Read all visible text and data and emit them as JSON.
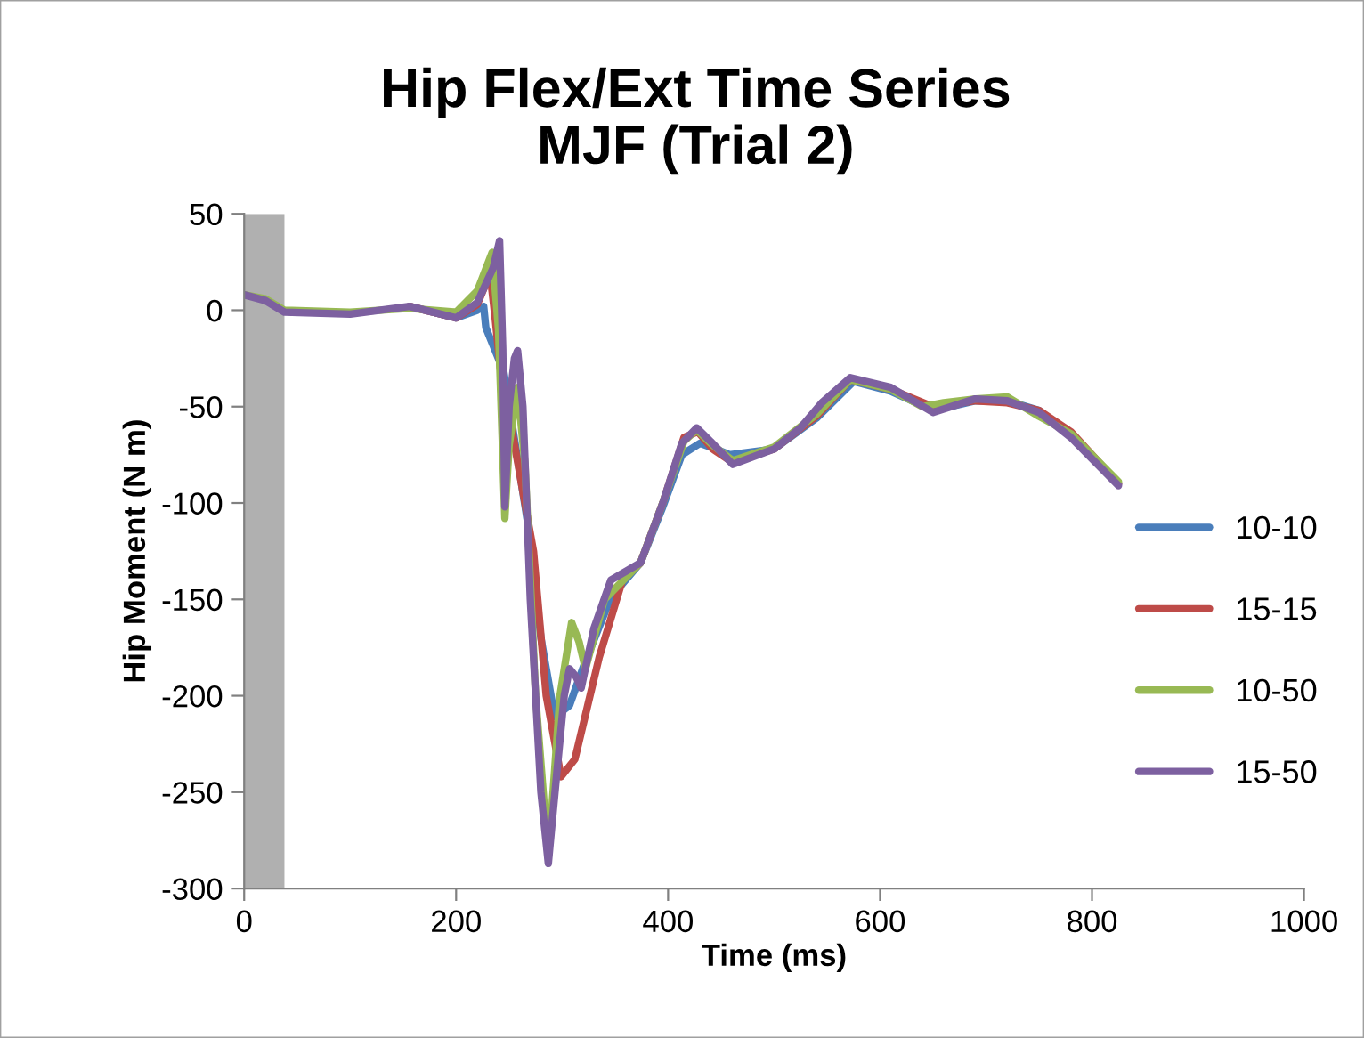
{
  "chart_data": {
    "type": "line",
    "title": "Hip Flex/Ext Time Series\nMJF (Trial 2)",
    "xlabel": "Time (ms)",
    "ylabel": "Hip Moment (N m)",
    "xlim": [
      0,
      1000
    ],
    "xticks": [
      0,
      200,
      400,
      600,
      800,
      1000
    ],
    "ylim": [
      -300,
      50
    ],
    "yticks": [
      -300,
      -250,
      -200,
      -150,
      -100,
      -50,
      0,
      50
    ],
    "grid": false,
    "legend": "right",
    "marker": "none",
    "line_style": "solid",
    "bands": [
      {
        "axis": "x",
        "from": 0,
        "to": 38,
        "color": "#b0b0b0"
      }
    ],
    "series": [
      {
        "name": "10-10",
        "color": "#4a7ebb",
        "x": [
          156,
          200,
          220,
          226,
          228,
          245,
          268,
          280,
          293,
          307,
          320,
          346,
          374,
          395,
          413,
          430,
          445,
          458,
          500,
          540,
          575,
          610,
          650,
          690,
          720,
          750,
          780,
          825
        ],
        "values": [
          2,
          -4,
          0,
          2,
          -9,
          -32,
          -112,
          -170,
          -211,
          -205,
          -185,
          -149,
          -131,
          -102,
          -75,
          -69,
          -72,
          -75,
          -72,
          -56,
          -37,
          -42,
          -52,
          -47,
          -47,
          -52,
          -65,
          -90
        ]
      },
      {
        "name": "15-15",
        "color": "#be4b48",
        "x": [
          156,
          200,
          220,
          232,
          237,
          242,
          251,
          273,
          285,
          299,
          312,
          335,
          357,
          374,
          395,
          415,
          428,
          442,
          461,
          500,
          540,
          572,
          610,
          650,
          690,
          720,
          750,
          780,
          825
        ],
        "values": [
          2,
          -4,
          3,
          19,
          -5,
          -32,
          -57,
          -125,
          -200,
          -242,
          -233,
          -180,
          -140,
          -131,
          -100,
          -66,
          -63,
          -72,
          -79,
          -72,
          -55,
          -36,
          -41,
          -50,
          -47,
          -48,
          -52,
          -63,
          -90
        ]
      },
      {
        "name": "10-50",
        "color": "#98b954",
        "x": [
          0,
          20,
          38,
          100,
          156,
          200,
          220,
          234,
          240,
          246,
          250,
          258,
          265,
          275,
          287,
          298,
          309,
          316,
          322,
          340,
          374,
          395,
          415,
          427,
          442,
          461,
          500,
          540,
          572,
          610,
          640,
          660,
          690,
          720,
          750,
          780,
          825
        ],
        "values": [
          8,
          6,
          0,
          -1,
          1,
          -1,
          10,
          30,
          -10,
          -108,
          -70,
          -40,
          -80,
          -200,
          -284,
          -200,
          -162,
          -172,
          -186,
          -150,
          -131,
          -100,
          -68,
          -62,
          -70,
          -78,
          -71,
          -54,
          -36,
          -41,
          -50,
          -48,
          -46,
          -45,
          -55,
          -64,
          -89
        ]
      },
      {
        "name": "15-50",
        "color": "#7d60a0",
        "x": [
          0,
          20,
          38,
          100,
          156,
          200,
          220,
          235,
          241,
          244,
          246,
          250,
          255,
          258,
          263,
          270,
          280,
          287,
          295,
          302,
          307,
          313,
          318,
          330,
          346,
          374,
          395,
          413,
          427,
          440,
          461,
          500,
          525,
          545,
          572,
          610,
          650,
          690,
          720,
          750,
          780,
          825
        ],
        "values": [
          8,
          5,
          -1,
          -2,
          2,
          -4,
          4,
          22,
          36,
          -20,
          -102,
          -50,
          -25,
          -21,
          -50,
          -150,
          -250,
          -287,
          -240,
          -200,
          -186,
          -190,
          -196,
          -165,
          -140,
          -131,
          -100,
          -69,
          -61,
          -68,
          -80,
          -72,
          -61,
          -48,
          -35,
          -40,
          -53,
          -46,
          -47,
          -53,
          -66,
          -91
        ]
      }
    ]
  }
}
